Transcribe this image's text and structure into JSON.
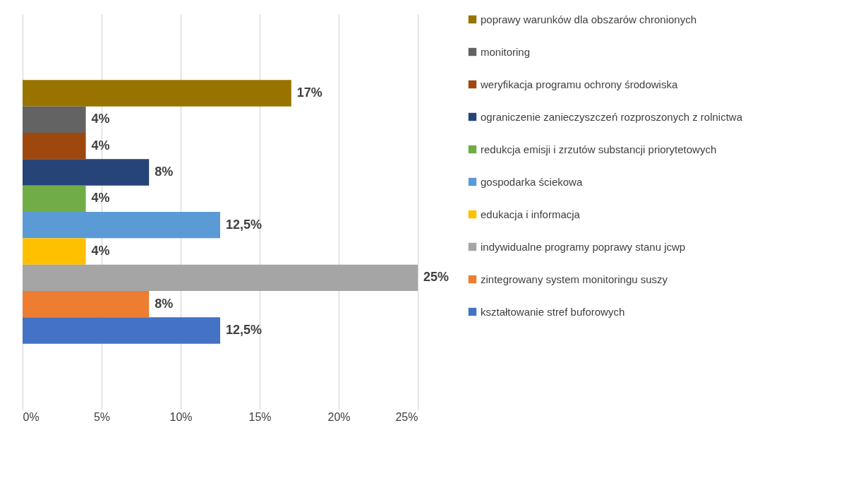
{
  "chart_data": {
    "type": "bar",
    "orientation": "horizontal",
    "categories": [
      null
    ],
    "series": [
      {
        "name": "poprawy warunków dla obszarów chronionych",
        "color": "#997300",
        "values": [
          17
        ]
      },
      {
        "name": "monitoring",
        "color": "#636363",
        "values": [
          4
        ]
      },
      {
        "name": "weryfikacja programu ochrony środowiska",
        "color": "#9e480e",
        "values": [
          4
        ]
      },
      {
        "name": "ograniczenie zanieczyszczeń rozproszonych z rolnictwa",
        "color": "#264478",
        "values": [
          8
        ]
      },
      {
        "name": "redukcja emisji i zrzutów substancji priorytetowych",
        "color": "#70ad47",
        "values": [
          4
        ]
      },
      {
        "name": "gospodarka ściekowa",
        "color": "#5b9bd5",
        "values": [
          12.5
        ]
      },
      {
        "name": "edukacja i informacja",
        "color": "#ffc000",
        "values": [
          4
        ]
      },
      {
        "name": "indywidualne programy poprawy stanu jcwp",
        "color": "#a5a5a5",
        "values": [
          25
        ]
      },
      {
        "name": "zintegrowany system monitoringu suszy",
        "color": "#ed7d31",
        "values": [
          8
        ]
      },
      {
        "name": "kształtowanie stref buforowych",
        "color": "#4472c4",
        "values": [
          12.5
        ]
      }
    ],
    "value_labels": [
      "17%",
      "4%",
      "4%",
      "8%",
      "4%",
      "12,5%",
      "4%",
      "25%",
      "8%",
      "12,5%"
    ],
    "xlim": [
      0,
      25
    ],
    "xticks": [
      {
        "value": 0,
        "label": "0%"
      },
      {
        "value": 5,
        "label": "5%"
      },
      {
        "value": 10,
        "label": "10%"
      },
      {
        "value": 15,
        "label": "15%"
      },
      {
        "value": 20,
        "label": "20%"
      },
      {
        "value": 25,
        "label": "25%"
      }
    ],
    "grid": "x",
    "legend": "right"
  }
}
